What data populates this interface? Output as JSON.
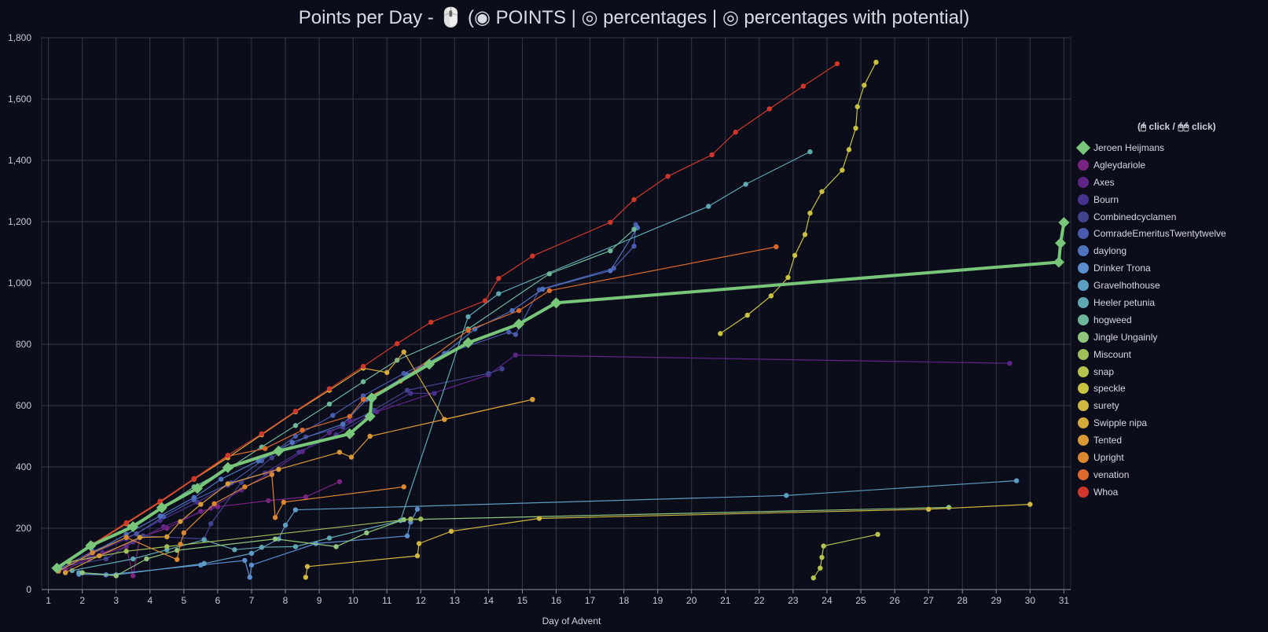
{
  "title": {
    "prefix": "Points per Day - 🖱️ (",
    "opt_points": "◉ POINTS",
    "sep1": " | ",
    "opt_percent": "◎ percentages",
    "sep2": " | ",
    "opt_potential": "◎ percentages with potential",
    "suffix": ")"
  },
  "legend_title": "(🖰 click / 🖰🖰 click)",
  "chart_data": {
    "type": "line",
    "title": "Points per Day",
    "xlabel": "Day of Advent",
    "ylabel": "",
    "xlim": [
      0.8,
      31.2
    ],
    "ylim": [
      0,
      1800
    ],
    "xticks": [
      1,
      2,
      3,
      4,
      5,
      6,
      7,
      8,
      9,
      10,
      11,
      12,
      13,
      14,
      15,
      16,
      17,
      18,
      19,
      20,
      21,
      22,
      23,
      24,
      25,
      26,
      27,
      28,
      29,
      30,
      31
    ],
    "yticks": [
      0,
      200,
      400,
      600,
      800,
      1000,
      1200,
      1400,
      1600,
      1800
    ],
    "ytick_labels": [
      "0",
      "200",
      "400",
      "600",
      "800",
      "1,000",
      "1,200",
      "1,400",
      "1,600",
      "1,800"
    ],
    "grid": true,
    "legend_position": "right",
    "series": [
      {
        "name": "Jeroen Heijmans",
        "color": "#78c679",
        "highlight": true,
        "points": [
          [
            1.25,
            70
          ],
          [
            2.25,
            143
          ],
          [
            3.5,
            205
          ],
          [
            4.35,
            267
          ],
          [
            5.4,
            330
          ],
          [
            6.3,
            398
          ],
          [
            7.8,
            452
          ],
          [
            9.9,
            508
          ],
          [
            10.5,
            565
          ],
          [
            10.55,
            625
          ],
          [
            12.25,
            735
          ],
          [
            13.4,
            805
          ],
          [
            14.9,
            866
          ],
          [
            16.0,
            935
          ],
          [
            30.85,
            1068
          ],
          [
            30.9,
            1130
          ],
          [
            31.0,
            1197
          ]
        ]
      },
      {
        "name": "Agleydariole",
        "color": "#7b2382",
        "points": [
          [
            1.5,
            65
          ],
          [
            2.2,
            100
          ],
          [
            3.3,
            140
          ],
          [
            3.5,
            45
          ],
          [
            3.7,
            170
          ],
          [
            4.5,
            200
          ],
          [
            5.5,
            255
          ],
          [
            6.0,
            270
          ],
          [
            7.5,
            290
          ],
          [
            8.6,
            302
          ],
          [
            9.6,
            352
          ]
        ]
      },
      {
        "name": "Axes",
        "color": "#5e2587",
        "points": [
          [
            1.4,
            70
          ],
          [
            2.6,
            120
          ],
          [
            3.5,
            155
          ],
          [
            4.4,
            205
          ],
          [
            5.8,
            265
          ],
          [
            6.7,
            325
          ],
          [
            7.6,
            385
          ],
          [
            8.5,
            450
          ],
          [
            9.3,
            512
          ],
          [
            9.9,
            550
          ],
          [
            10.7,
            580
          ],
          [
            14.0,
            700
          ],
          [
            14.8,
            765
          ],
          [
            29.4,
            738
          ]
        ]
      },
      {
        "name": "Bourn",
        "color": "#46318c",
        "points": [
          [
            1.3,
            62
          ],
          [
            2.2,
            112
          ],
          [
            3.3,
            165
          ],
          [
            4.3,
            225
          ],
          [
            5.4,
            285
          ],
          [
            6.3,
            340
          ],
          [
            7.4,
            380
          ],
          [
            8.4,
            448
          ],
          [
            9.5,
            505
          ],
          [
            10.5,
            570
          ],
          [
            11.7,
            640
          ],
          [
            12.4,
            640
          ]
        ]
      },
      {
        "name": "Combinedcyclamen",
        "color": "#42438e",
        "points": [
          [
            1.4,
            75
          ],
          [
            2.7,
            100
          ],
          [
            3.8,
            175
          ],
          [
            5.6,
            165
          ],
          [
            5.8,
            215
          ],
          [
            6.7,
            350
          ],
          [
            7.6,
            430
          ],
          [
            8.6,
            498
          ],
          [
            9.7,
            530
          ],
          [
            10.6,
            585
          ],
          [
            11.6,
            650
          ],
          [
            14.0,
            705
          ],
          [
            14.4,
            720
          ]
        ]
      },
      {
        "name": "ComradeEmeritusTwentytwelve",
        "color": "#4a5aac",
        "points": [
          [
            1.3,
            65
          ],
          [
            2.3,
            125
          ],
          [
            3.6,
            182
          ],
          [
            4.4,
            238
          ],
          [
            5.3,
            292
          ],
          [
            6.4,
            348
          ],
          [
            7.3,
            420
          ],
          [
            8.3,
            500
          ],
          [
            9.4,
            568
          ],
          [
            10.3,
            632
          ],
          [
            11.5,
            705
          ],
          [
            12.8,
            772
          ],
          [
            14.6,
            840
          ],
          [
            14.8,
            832
          ],
          [
            15.5,
            978
          ],
          [
            17.7,
            1048
          ],
          [
            18.3,
            1120
          ],
          [
            18.35,
            1190
          ]
        ]
      },
      {
        "name": "daylong",
        "color": "#4e73bd",
        "points": [
          [
            1.3,
            60
          ],
          [
            2.3,
            120
          ],
          [
            3.3,
            180
          ],
          [
            4.3,
            240
          ],
          [
            5.3,
            300
          ],
          [
            6.1,
            360
          ],
          [
            7.2,
            420
          ],
          [
            8.2,
            480
          ],
          [
            9.7,
            540
          ],
          [
            10.4,
            620
          ],
          [
            11.6,
            700
          ],
          [
            12.7,
            770
          ],
          [
            13.6,
            850
          ],
          [
            14.7,
            910
          ],
          [
            15.6,
            980
          ],
          [
            17.6,
            1040
          ],
          [
            18.4,
            1180
          ]
        ]
      },
      {
        "name": "Drinker Trona",
        "color": "#5b8dcf",
        "points": [
          [
            1.9,
            50
          ],
          [
            2.7,
            48
          ],
          [
            5.5,
            80
          ],
          [
            6.8,
            95
          ],
          [
            6.95,
            40
          ],
          [
            7.0,
            80
          ],
          [
            8.9,
            150
          ],
          [
            11.6,
            175
          ],
          [
            11.7,
            220
          ],
          [
            11.9,
            262
          ]
        ]
      },
      {
        "name": "Gravelhothouse",
        "color": "#5c9dc2",
        "points": [
          [
            1.9,
            55
          ],
          [
            3.0,
            48
          ],
          [
            5.6,
            85
          ],
          [
            7.0,
            118
          ],
          [
            7.8,
            165
          ],
          [
            8.0,
            210
          ],
          [
            8.3,
            260
          ],
          [
            22.8,
            307
          ],
          [
            29.6,
            355
          ]
        ]
      },
      {
        "name": "Heeler petunia",
        "color": "#5ea9b1",
        "points": [
          [
            1.7,
            62
          ],
          [
            3.5,
            100
          ],
          [
            4.5,
            130
          ],
          [
            5.6,
            162
          ],
          [
            6.5,
            130
          ],
          [
            7.3,
            138
          ],
          [
            8.3,
            140
          ],
          [
            9.3,
            168
          ],
          [
            11.4,
            225
          ],
          [
            13.4,
            890
          ],
          [
            14.3,
            965
          ],
          [
            20.5,
            1250
          ],
          [
            21.6,
            1322
          ],
          [
            23.5,
            1428
          ]
        ]
      },
      {
        "name": "hogweed",
        "color": "#6db79a",
        "points": [
          [
            1.3,
            70
          ],
          [
            2.3,
            145
          ],
          [
            3.4,
            205
          ],
          [
            4.4,
            270
          ],
          [
            5.3,
            335
          ],
          [
            6.4,
            400
          ],
          [
            7.3,
            465
          ],
          [
            8.3,
            535
          ],
          [
            9.3,
            605
          ],
          [
            10.3,
            678
          ],
          [
            11.3,
            748
          ],
          [
            13.4,
            850
          ],
          [
            15.8,
            1030
          ],
          [
            17.6,
            1105
          ],
          [
            18.3,
            1175
          ]
        ]
      },
      {
        "name": "Jingle Ungainly",
        "color": "#8fc67b",
        "points": [
          [
            2.0,
            55
          ],
          [
            3.0,
            45
          ],
          [
            3.9,
            100
          ],
          [
            4.8,
            128
          ],
          [
            7.7,
            165
          ],
          [
            9.5,
            140
          ],
          [
            10.4,
            185
          ],
          [
            11.5,
            228
          ],
          [
            27.6,
            268
          ]
        ]
      },
      {
        "name": "Miscount",
        "color": "#a0bf58",
        "points": [
          [
            1.6,
            90
          ],
          [
            3.3,
            125
          ],
          [
            4.5,
            140
          ],
          [
            11.7,
            230
          ],
          [
            12.0,
            230
          ]
        ]
      },
      {
        "name": "snap",
        "color": "#b6c34d",
        "points": [
          [
            23.6,
            38
          ],
          [
            23.8,
            70
          ],
          [
            23.85,
            105
          ],
          [
            23.9,
            142
          ],
          [
            25.5,
            180
          ]
        ]
      },
      {
        "name": "speckle",
        "color": "#c8c23f",
        "points": [
          [
            20.85,
            835
          ],
          [
            21.65,
            895
          ],
          [
            22.35,
            958
          ],
          [
            22.85,
            1018
          ],
          [
            23.05,
            1090
          ],
          [
            23.35,
            1158
          ],
          [
            23.5,
            1228
          ],
          [
            23.85,
            1298
          ],
          [
            24.45,
            1368
          ],
          [
            24.65,
            1435
          ],
          [
            24.85,
            1505
          ],
          [
            24.9,
            1575
          ],
          [
            25.1,
            1645
          ],
          [
            25.45,
            1720
          ]
        ]
      },
      {
        "name": "surety",
        "color": "#d0b73f",
        "points": [
          [
            8.6,
            40
          ],
          [
            8.65,
            75
          ],
          [
            11.9,
            110
          ],
          [
            11.95,
            150
          ],
          [
            12.9,
            190
          ],
          [
            15.5,
            232
          ],
          [
            27.0,
            262
          ],
          [
            30.0,
            278
          ]
        ]
      },
      {
        "name": "Swipple nipa",
        "color": "#d4a93a",
        "points": [
          [
            1.3,
            70
          ],
          [
            2.3,
            148
          ],
          [
            3.3,
            215
          ],
          [
            4.3,
            288
          ],
          [
            5.3,
            360
          ],
          [
            6.3,
            430
          ],
          [
            7.3,
            505
          ],
          [
            8.3,
            580
          ],
          [
            9.3,
            650
          ],
          [
            10.3,
            722
          ],
          [
            11.0,
            708
          ],
          [
            11.5,
            775
          ],
          [
            12.7,
            555
          ],
          [
            15.3,
            620
          ]
        ]
      },
      {
        "name": "Tented",
        "color": "#d99a35",
        "points": [
          [
            1.5,
            55
          ],
          [
            2.5,
            110
          ],
          [
            3.7,
            170
          ],
          [
            4.5,
            172
          ],
          [
            4.9,
            222
          ],
          [
            5.5,
            278
          ],
          [
            6.3,
            345
          ],
          [
            7.8,
            392
          ],
          [
            9.6,
            448
          ],
          [
            9.95,
            432
          ],
          [
            10.5,
            500
          ],
          [
            12.7,
            555
          ],
          [
            15.3,
            620
          ]
        ]
      },
      {
        "name": "Upright",
        "color": "#dc8630",
        "points": [
          [
            1.3,
            60
          ],
          [
            2.3,
            120
          ],
          [
            3.3,
            170
          ],
          [
            4.8,
            98
          ],
          [
            4.9,
            148
          ],
          [
            5.0,
            185
          ],
          [
            5.9,
            280
          ],
          [
            6.8,
            335
          ],
          [
            7.6,
            375
          ],
          [
            7.7,
            235
          ],
          [
            7.95,
            285
          ],
          [
            11.5,
            335
          ]
        ]
      },
      {
        "name": "venation",
        "color": "#db6a2b",
        "points": [
          [
            1.3,
            72
          ],
          [
            2.3,
            145
          ],
          [
            3.3,
            215
          ],
          [
            4.3,
            285
          ],
          [
            5.3,
            360
          ],
          [
            6.3,
            435
          ],
          [
            7.4,
            460
          ],
          [
            8.5,
            520
          ],
          [
            9.9,
            565
          ],
          [
            10.3,
            620
          ],
          [
            11.4,
            680
          ],
          [
            13.4,
            845
          ],
          [
            14.9,
            910
          ],
          [
            15.8,
            975
          ],
          [
            22.5,
            1118
          ]
        ]
      },
      {
        "name": "Whoa",
        "color": "#d0372a",
        "points": [
          [
            1.3,
            72
          ],
          [
            2.3,
            148
          ],
          [
            3.3,
            218
          ],
          [
            4.3,
            288
          ],
          [
            5.3,
            362
          ],
          [
            6.3,
            438
          ],
          [
            7.3,
            508
          ],
          [
            8.3,
            582
          ],
          [
            9.3,
            655
          ],
          [
            10.3,
            728
          ],
          [
            11.3,
            802
          ],
          [
            12.3,
            872
          ],
          [
            13.9,
            942
          ],
          [
            14.3,
            1015
          ],
          [
            15.3,
            1088
          ],
          [
            17.6,
            1198
          ],
          [
            18.3,
            1272
          ],
          [
            19.3,
            1348
          ],
          [
            20.6,
            1418
          ],
          [
            21.3,
            1492
          ],
          [
            22.3,
            1568
          ],
          [
            23.3,
            1642
          ],
          [
            24.3,
            1715
          ]
        ]
      }
    ]
  }
}
